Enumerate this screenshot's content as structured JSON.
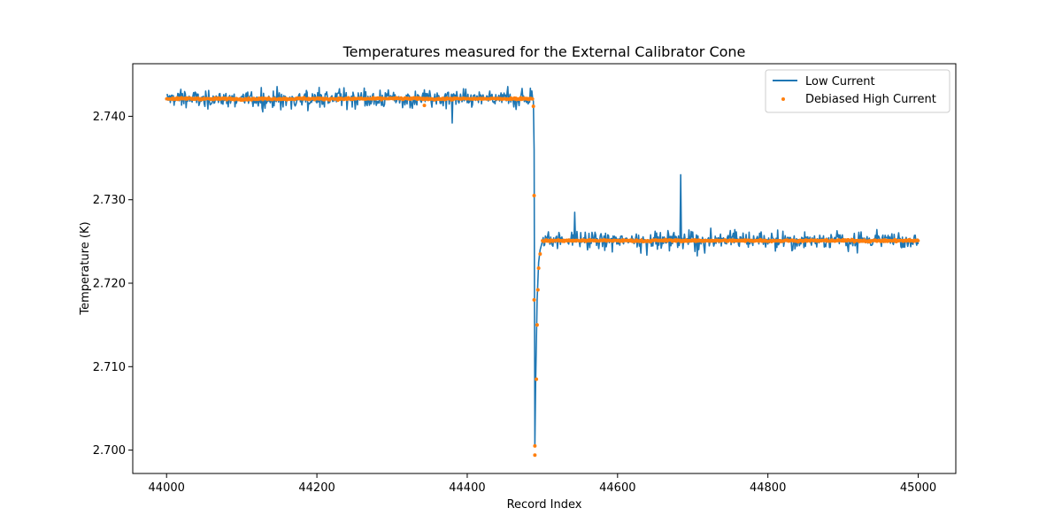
{
  "chart_data": {
    "type": "line",
    "title": "Temperatures measured for the External Calibrator Cone",
    "xlabel": "Record Index",
    "ylabel": "Temperature (K)",
    "xlim": [
      43955,
      45050
    ],
    "ylim": [
      2.6972,
      2.7463
    ],
    "x_ticks": [
      44000,
      44200,
      44400,
      44600,
      44800,
      45000
    ],
    "y_ticks": [
      2.7,
      2.71,
      2.72,
      2.73,
      2.74
    ],
    "x_tick_labels": [
      "44000",
      "44200",
      "44400",
      "44600",
      "44800",
      "45000"
    ],
    "y_tick_labels": [
      "2.700",
      "2.710",
      "2.720",
      "2.730",
      "2.740"
    ],
    "legend_position": "top-right",
    "series": [
      {
        "name": "Low Current",
        "style": "line",
        "color": "#1f77b4",
        "segments": [
          {
            "x_start": 44000,
            "x_end": 44488,
            "level": 2.7421,
            "noise": 0.0011,
            "note": "high plateau, noisy"
          },
          {
            "x_start": 44500,
            "x_end": 45000,
            "level": 2.7252,
            "noise": 0.001,
            "note": "low plateau, noisy"
          }
        ],
        "transition": [
          {
            "x": 44488,
            "y": 2.7418
          },
          {
            "x": 44489,
            "y": 2.736
          },
          {
            "x": 44490,
            "y": 2.7005
          },
          {
            "x": 44491,
            "y": 2.708
          },
          {
            "x": 44493,
            "y": 2.718
          },
          {
            "x": 44495,
            "y": 2.7225
          },
          {
            "x": 44497,
            "y": 2.724
          },
          {
            "x": 44500,
            "y": 2.725
          }
        ],
        "spikes": [
          {
            "x": 44543,
            "y": 2.7285
          },
          {
            "x": 44684,
            "y": 2.733
          },
          {
            "x": 44380,
            "y": 2.7392
          }
        ]
      },
      {
        "name": "Debiased High Current",
        "style": "scatter",
        "color": "#ff7f0e",
        "segments": [
          {
            "x_start": 44000,
            "x_end": 44488,
            "level": 2.7421,
            "noise": 0.0002
          },
          {
            "x_start": 44500,
            "x_end": 45000,
            "level": 2.7251,
            "noise": 0.0002
          }
        ],
        "transition_points": [
          {
            "x": 44488,
            "y": 2.7412
          },
          {
            "x": 44489,
            "y": 2.7305
          },
          {
            "x": 44489,
            "y": 2.718
          },
          {
            "x": 44490,
            "y": 2.7005
          },
          {
            "x": 44490,
            "y": 2.6994
          },
          {
            "x": 44492,
            "y": 2.7085
          },
          {
            "x": 44493,
            "y": 2.715
          },
          {
            "x": 44494,
            "y": 2.7192
          },
          {
            "x": 44495,
            "y": 2.7218
          },
          {
            "x": 44497,
            "y": 2.7235
          },
          {
            "x": 44343,
            "y": 2.7413
          }
        ]
      }
    ]
  }
}
